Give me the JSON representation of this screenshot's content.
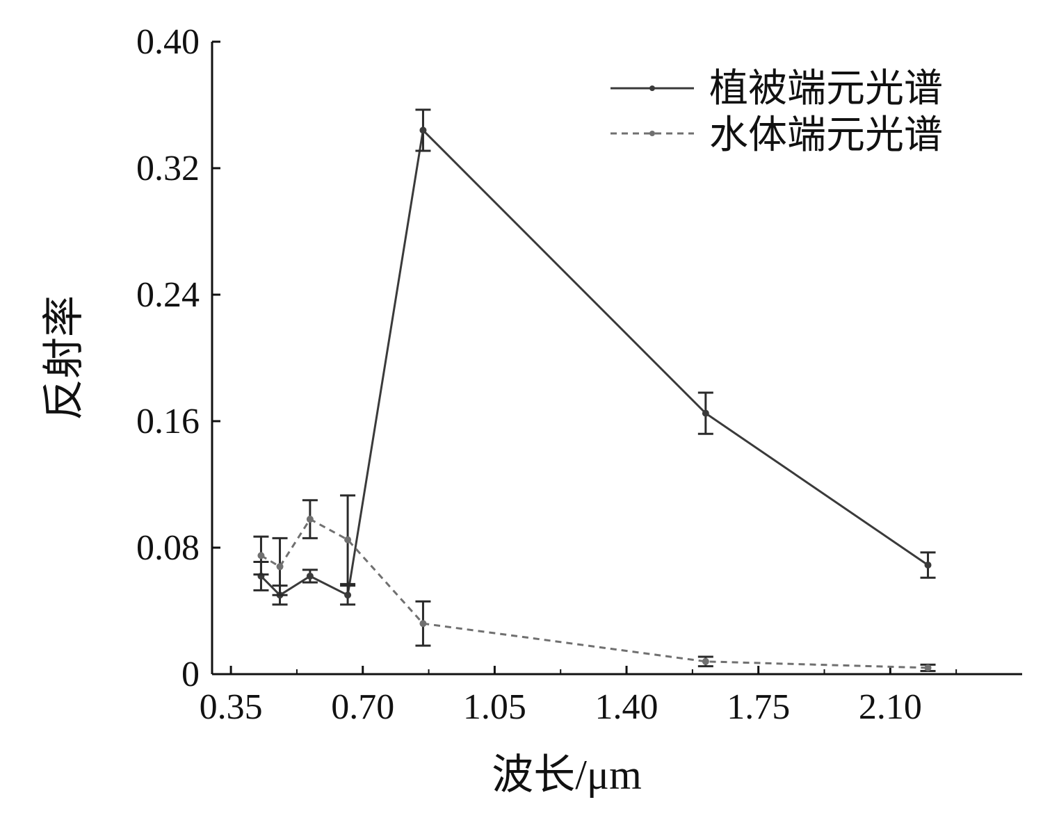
{
  "chart_data": {
    "type": "line",
    "xlabel": "波长/μm",
    "ylabel": "反射率",
    "xlim": [
      0.3,
      2.45
    ],
    "ylim": [
      0,
      0.4
    ],
    "xticks": [
      "0.35",
      "0.70",
      "1.05",
      "1.40",
      "1.75",
      "2.10"
    ],
    "yticks": [
      "0",
      "0.08",
      "0.16",
      "0.24",
      "0.32",
      "0.40"
    ],
    "legend_position": "top-right",
    "grid": false,
    "series": [
      {
        "name": "植被端元光谱",
        "line_style": "solid",
        "color": "#3a3a3a",
        "x": [
          0.43,
          0.48,
          0.56,
          0.66,
          0.86,
          1.61,
          2.2
        ],
        "y": [
          0.062,
          0.05,
          0.062,
          0.05,
          0.344,
          0.165,
          0.069
        ],
        "error": [
          0.009,
          0.006,
          0.004,
          0.006,
          0.013,
          0.013,
          0.008
        ]
      },
      {
        "name": "水体端元光谱",
        "line_style": "dashed",
        "color": "#707070",
        "x": [
          0.43,
          0.48,
          0.56,
          0.66,
          0.86,
          1.61,
          2.2
        ],
        "y": [
          0.075,
          0.068,
          0.098,
          0.085,
          0.032,
          0.008,
          0.004
        ],
        "error": [
          0.012,
          0.018,
          0.012,
          0.028,
          0.014,
          0.003,
          0.002
        ]
      }
    ]
  }
}
